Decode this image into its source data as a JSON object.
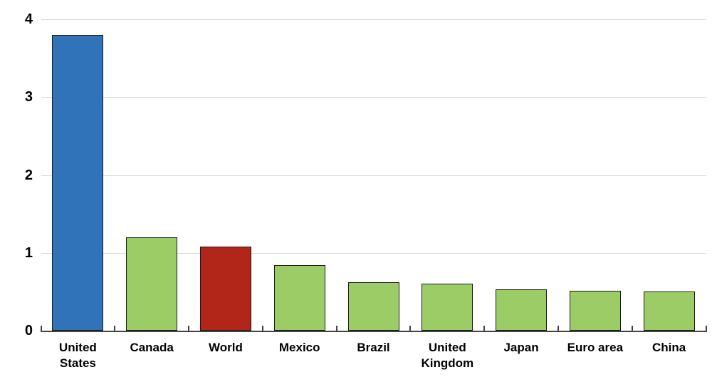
{
  "chart_data": {
    "type": "bar",
    "title": "",
    "xlabel": "",
    "ylabel": "",
    "categories": [
      "United States",
      "Canada",
      "World",
      "Mexico",
      "Brazil",
      "United Kingdom",
      "Japan",
      "Euro area",
      "China"
    ],
    "tick_labels": [
      "United\nStates",
      "Canada",
      "World",
      "Mexico",
      "Brazil",
      "United\nKingdom",
      "Japan",
      "Euro area",
      "China"
    ],
    "values": [
      3.8,
      1.2,
      1.08,
      0.84,
      0.62,
      0.6,
      0.53,
      0.51,
      0.5
    ],
    "bar_colors": [
      "#3173B9",
      "#9BCC66",
      "#B2261A",
      "#9BCC66",
      "#9BCC66",
      "#9BCC66",
      "#9BCC66",
      "#9BCC66",
      "#9BCC66"
    ],
    "ylim": [
      0,
      4
    ],
    "yticks": [
      0,
      1,
      2,
      3,
      4
    ],
    "grid": "horizontal",
    "legend": "none",
    "colors": {
      "bar_default": "#9BCC66",
      "bar_highlight_united_states": "#3173B9",
      "bar_highlight_world": "#B2261A",
      "bar_border": "#1A1A1A",
      "gridline": "#D9D9D9",
      "axis": "#444444",
      "label": "#000000",
      "background": "#FFFFFF"
    }
  }
}
